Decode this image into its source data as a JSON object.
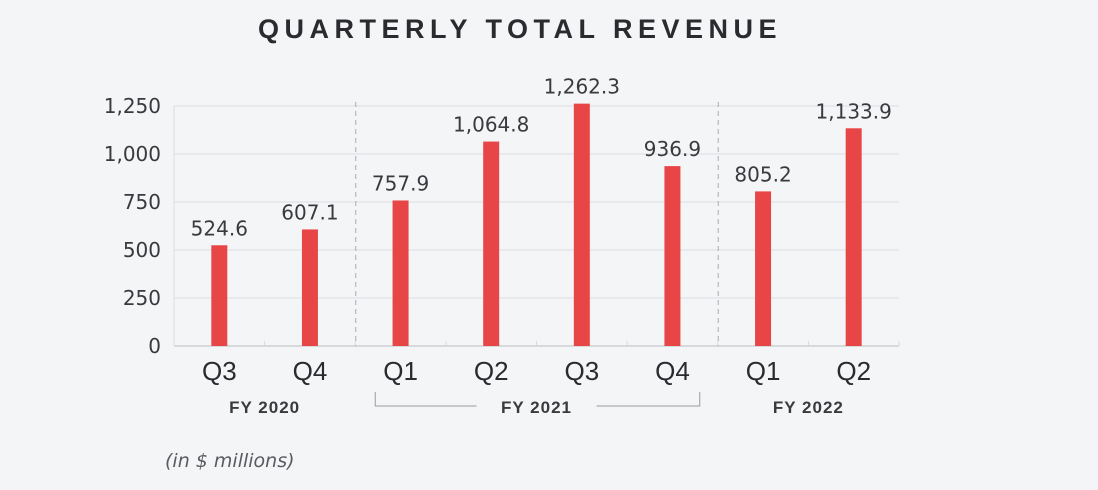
{
  "chart_data": {
    "type": "bar",
    "title": "QUARTERLY TOTAL REVENUE",
    "xlabel": "",
    "ylabel": "",
    "note": "(in $ millions)",
    "categories": [
      "Q3",
      "Q4",
      "Q1",
      "Q2",
      "Q3",
      "Q4",
      "Q1",
      "Q2"
    ],
    "groups": [
      {
        "label": "FY 2020",
        "start": 0,
        "end": 1,
        "bracket": false
      },
      {
        "label": "FY 2021",
        "start": 2,
        "end": 5,
        "bracket": true
      },
      {
        "label": "FY 2022",
        "start": 6,
        "end": 7,
        "bracket": false
      }
    ],
    "values": [
      524.6,
      607.1,
      757.9,
      1064.8,
      1262.3,
      936.9,
      805.2,
      1133.9
    ],
    "value_labels": [
      "524.6",
      "607.1",
      "757.9",
      "1,064.8",
      "1,262.3",
      "936.9",
      "805.2",
      "1,133.9"
    ],
    "ylim": [
      0,
      1250
    ],
    "yticks": [
      0,
      250,
      500,
      750,
      1000,
      1250
    ],
    "ytick_labels": [
      "0",
      "250",
      "500",
      "750",
      "1,000",
      "1,250"
    ],
    "grid": true,
    "bar_color": "#e84646",
    "legend": "none"
  }
}
